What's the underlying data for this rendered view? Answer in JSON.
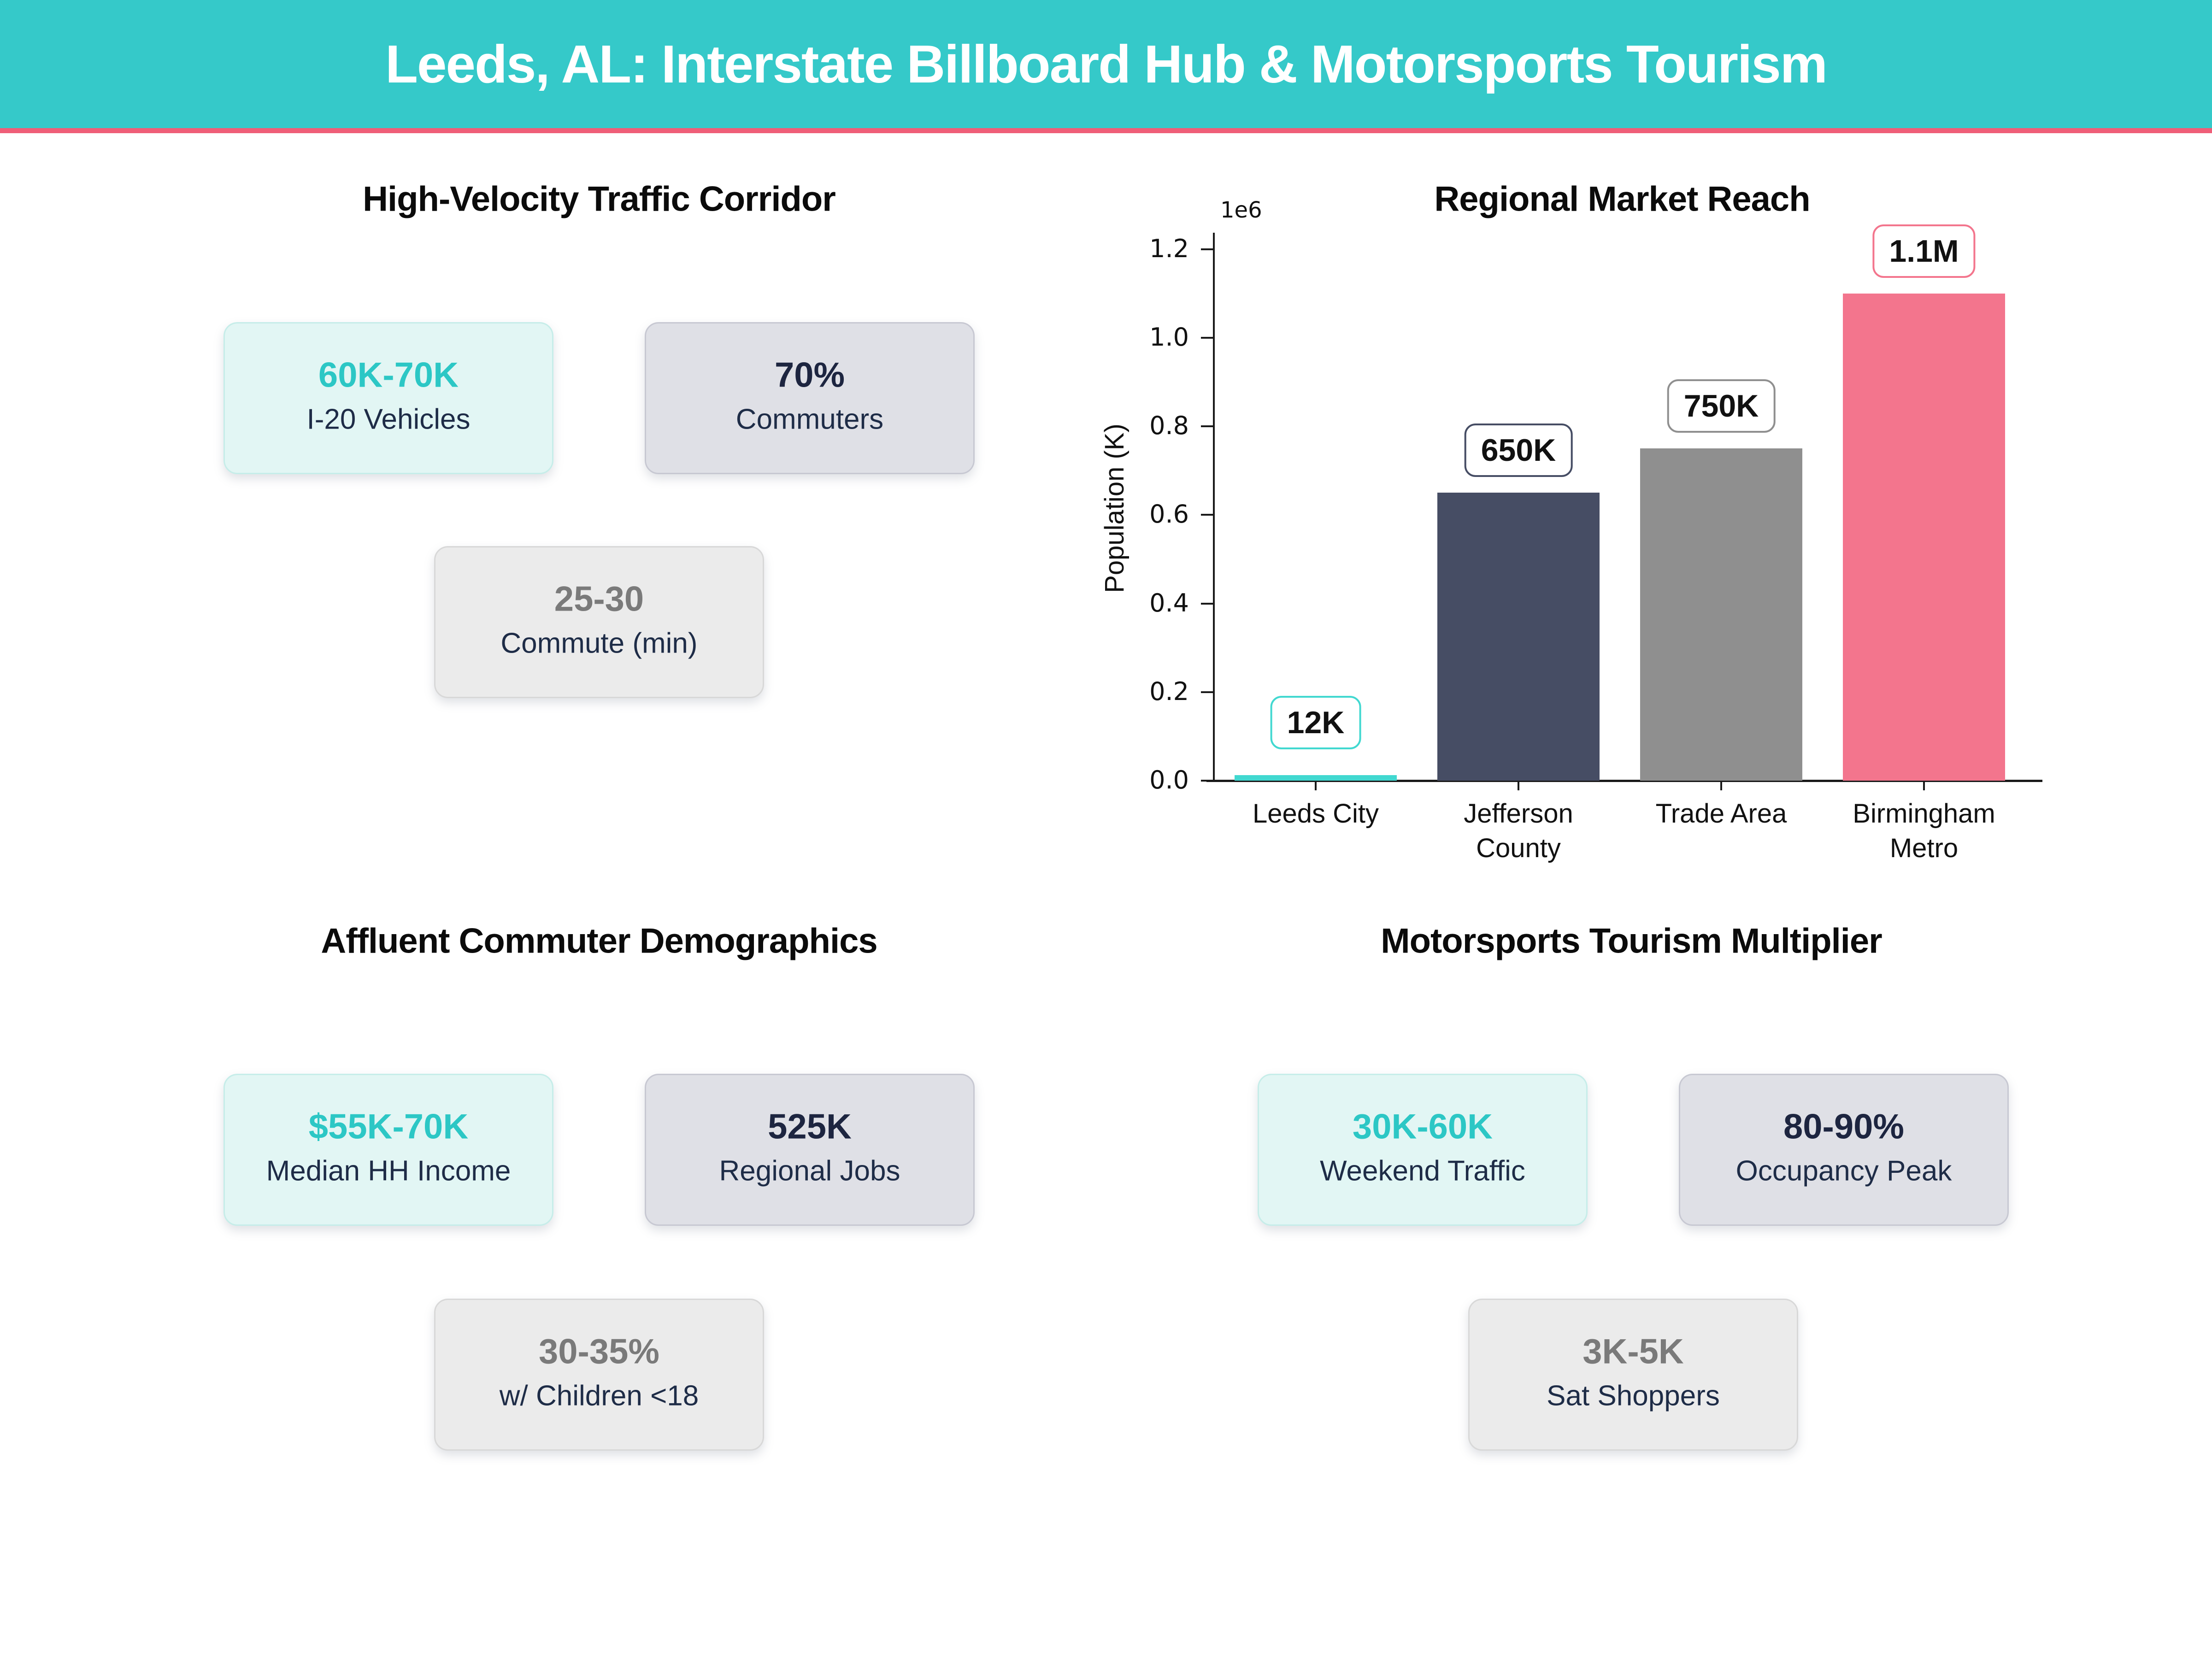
{
  "header": {
    "title": "Leeds, AL: Interstate Billboard Hub & Motorsports Tourism"
  },
  "palette": {
    "header_teal": "#35c9c9",
    "accent_pink": "#ef5e78",
    "value_teal": "#2cc7c5",
    "value_navy": "#1d2540",
    "value_gray": "#7a7a7a",
    "label_navy": "#1e2c47"
  },
  "sections": [
    {
      "title": "High-Velocity Traffic Corridor",
      "cards": [
        {
          "value": "60K-70K",
          "label": "I-20 Vehicles"
        },
        {
          "value": "70%",
          "label": "Commuters"
        },
        {
          "value": "25-30",
          "label": "Commute (min)"
        }
      ]
    },
    {
      "title": "Regional Market Reach"
    },
    {
      "title": "Affluent Commuter Demographics",
      "cards": [
        {
          "value": "$55K-70K",
          "label": "Median HH Income"
        },
        {
          "value": "525K",
          "label": "Regional Jobs"
        },
        {
          "value": "30-35%",
          "label": "w/ Children <18"
        }
      ]
    },
    {
      "title": "Motorsports Tourism Multiplier",
      "cards": [
        {
          "value": "30K-60K",
          "label": "Weekend Traffic"
        },
        {
          "value": "80-90%",
          "label": "Occupancy Peak"
        },
        {
          "value": "3K-5K",
          "label": "Sat Shoppers"
        }
      ]
    }
  ],
  "chart_data": {
    "type": "bar",
    "title": "Regional Market Reach",
    "categories": [
      "Leeds City",
      "Jefferson County",
      "Trade Area",
      "Birmingham Metro"
    ],
    "tick_labels": [
      "Leeds City",
      "Jefferson\nCounty",
      "Trade Area",
      "Birmingham\nMetro"
    ],
    "values": [
      12000,
      650000,
      750000,
      1100000
    ],
    "bar_labels": [
      "12K",
      "650K",
      "750K",
      "1.1M"
    ],
    "bar_colors": [
      "#41d8d0",
      "#464d64",
      "#8f8f8f",
      "#f3758d"
    ],
    "xlabel": "",
    "ylabel": "Population (K)",
    "ylim": [
      0,
      1250000
    ],
    "yticks": [
      0,
      200000,
      400000,
      600000,
      800000,
      1000000,
      1200000
    ],
    "ytick_labels": [
      "0.0",
      "0.2",
      "0.4",
      "0.6",
      "0.8",
      "1.0",
      "1.2"
    ],
    "offset_text": "1e6",
    "grid": false,
    "legend": null
  }
}
